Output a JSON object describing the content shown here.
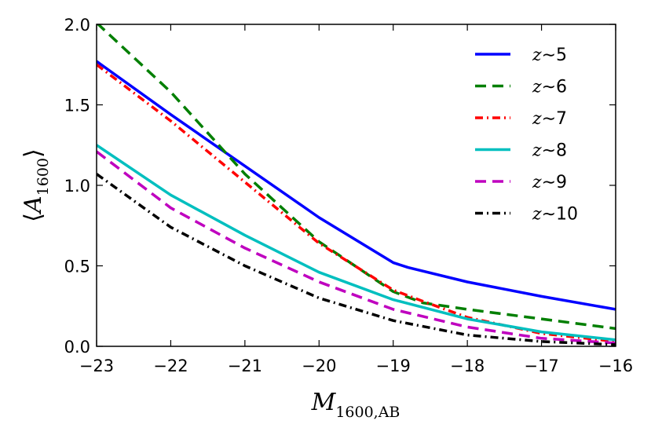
{
  "chart_data": {
    "type": "line",
    "title": "",
    "xlabel": {
      "main": "M",
      "sub": "1600,AB"
    },
    "ylabel": {
      "left": "⟨",
      "main": "A",
      "sub": "1600",
      "right": "⟩"
    },
    "xlim": [
      -23,
      -16
    ],
    "ylim": [
      0,
      2.0
    ],
    "xticks": [
      -23,
      -22,
      -21,
      -20,
      -19,
      -18,
      -17,
      -16
    ],
    "xtick_labels": [
      "−23",
      "−22",
      "−21",
      "−20",
      "−19",
      "−18",
      "−17",
      "−16"
    ],
    "yticks": [
      0.0,
      0.5,
      1.0,
      1.5,
      2.0
    ],
    "ytick_labels": [
      "0.0",
      "0.5",
      "1.0",
      "1.5",
      "2.0"
    ],
    "legend_position": "top-right",
    "series": [
      {
        "name": "z~5",
        "z_label": "z",
        "num_label": "∼5",
        "color": "#0000ff",
        "dash": "",
        "x": [
          -23,
          -22,
          -21,
          -20,
          -19,
          -18.8,
          -18,
          -17,
          -16
        ],
        "y": [
          1.77,
          1.44,
          1.12,
          0.8,
          0.52,
          0.49,
          0.4,
          0.31,
          0.23
        ]
      },
      {
        "name": "z~6",
        "z_label": "z",
        "num_label": "∼6",
        "color": "#007f00",
        "dash": "14,8",
        "x": [
          -23,
          -22,
          -21,
          -20,
          -19,
          -18.6,
          -18,
          -17,
          -16
        ],
        "y": [
          2.01,
          1.58,
          1.07,
          0.65,
          0.34,
          0.27,
          0.23,
          0.17,
          0.11
        ]
      },
      {
        "name": "z~7",
        "z_label": "z",
        "num_label": "∼7",
        "color": "#ff0000",
        "dash": "10,5,2,5",
        "x": [
          -23,
          -22,
          -21,
          -20,
          -19,
          -18.6,
          -18,
          -17,
          -16
        ],
        "y": [
          1.75,
          1.4,
          1.02,
          0.64,
          0.35,
          0.28,
          0.18,
          0.08,
          0.03
        ]
      },
      {
        "name": "z~8",
        "z_label": "z",
        "num_label": "∼8",
        "color": "#00bfbf",
        "dash": "",
        "x": [
          -23,
          -22,
          -21,
          -20,
          -19,
          -18,
          -17,
          -16
        ],
        "y": [
          1.25,
          0.94,
          0.69,
          0.46,
          0.29,
          0.17,
          0.09,
          0.04
        ]
      },
      {
        "name": "z~9",
        "z_label": "z",
        "num_label": "∼9",
        "color": "#bf00bf",
        "dash": "14,8",
        "x": [
          -23,
          -22,
          -21,
          -20,
          -19,
          -18,
          -17,
          -16
        ],
        "y": [
          1.21,
          0.86,
          0.61,
          0.4,
          0.23,
          0.12,
          0.05,
          0.02
        ]
      },
      {
        "name": "z~10",
        "z_label": "z",
        "num_label": "∼10",
        "color": "#000000",
        "dash": "10,5,2,5",
        "x": [
          -23,
          -22,
          -21,
          -20,
          -19,
          -18,
          -17,
          -16
        ],
        "y": [
          1.07,
          0.74,
          0.5,
          0.3,
          0.16,
          0.07,
          0.03,
          0.01
        ]
      }
    ]
  }
}
